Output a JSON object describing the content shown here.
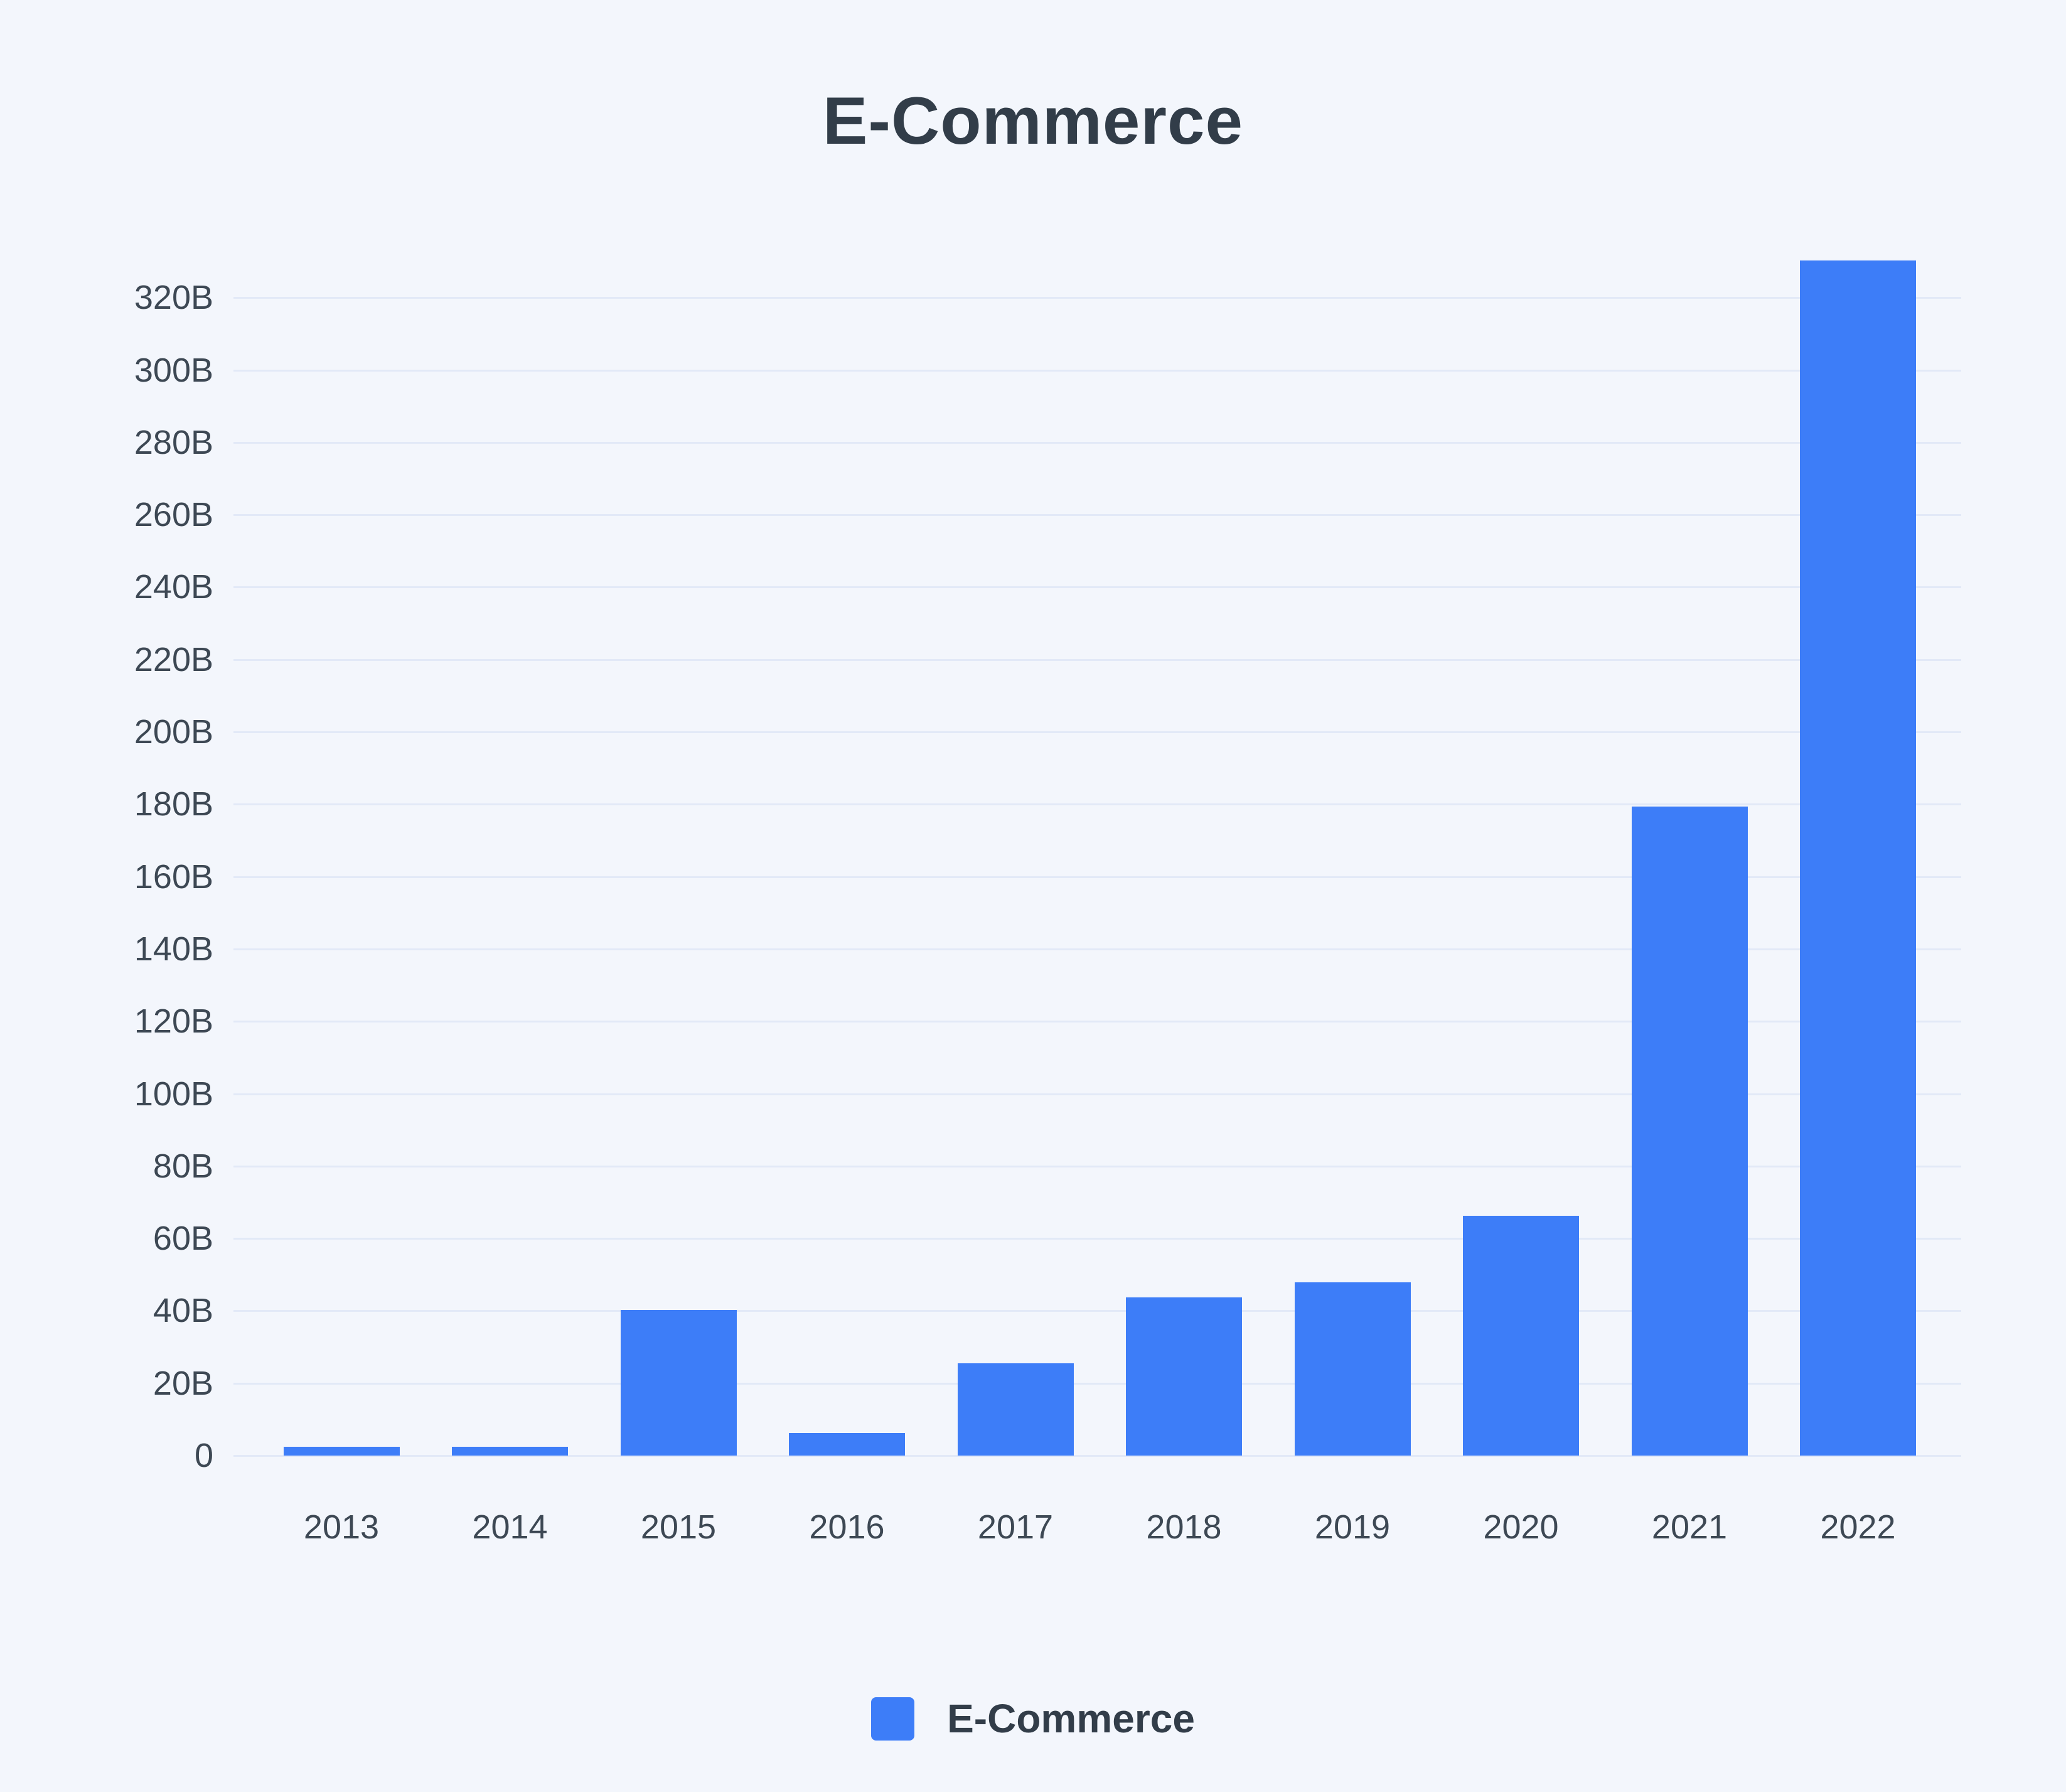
{
  "chart_data": {
    "type": "bar",
    "title": "E-Commerce",
    "categories": [
      "2013",
      "2014",
      "2015",
      "2016",
      "2017",
      "2018",
      "2019",
      "2020",
      "2021",
      "2022"
    ],
    "series": [
      {
        "name": "E-Commerce",
        "values": [
          2.5,
          2.5,
          40.3,
          6.2,
          25.5,
          43.7,
          47.9,
          66.3,
          179.4,
          330.3
        ]
      }
    ],
    "value_unit": "billions",
    "xlabel": "",
    "ylabel": "",
    "ylim": [
      0,
      334
    ],
    "y_tick_step": 20,
    "y_tick_max": 320,
    "y_tick_labels": [
      "0",
      "20B",
      "40B",
      "60B",
      "80B",
      "100B",
      "120B",
      "140B",
      "160B",
      "180B",
      "200B",
      "220B",
      "240B",
      "260B",
      "280B",
      "300B",
      "320B"
    ],
    "grid": true,
    "legend_position": "bottom"
  },
  "legend": {
    "label": "E-Commerce"
  },
  "colors": {
    "background": "#f3f6fc",
    "bar": "#3d7df8",
    "gridline": "#e2e9f7",
    "title_text": "#323d49",
    "tick_text": "#3d4854"
  }
}
